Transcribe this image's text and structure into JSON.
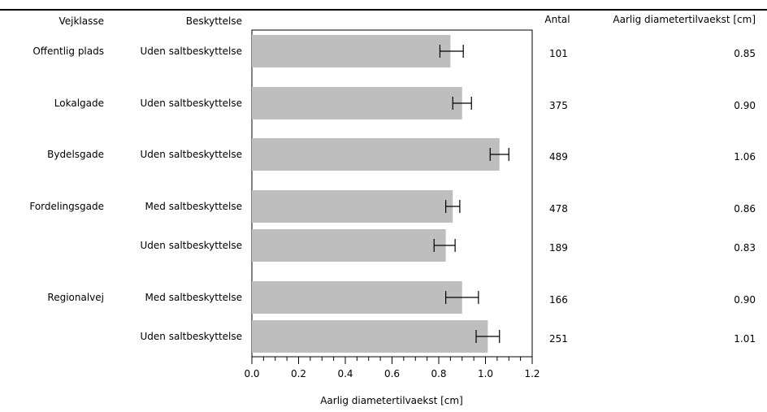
{
  "chart_data": {
    "type": "bar",
    "orientation": "horizontal",
    "headers": {
      "road_class": "Vejklasse",
      "protection": "Beskyttelse",
      "count": "Antal",
      "value": "Aarlig diametertilvaekst [cm]"
    },
    "rows": [
      {
        "road_class": "Offentlig plads",
        "protection": "Uden saltbeskyttelse",
        "count": "101",
        "value_label": "0.85",
        "value": 0.85,
        "err_low": 0.805,
        "err_high": 0.905
      },
      {
        "road_class": "Lokalgade",
        "protection": "Uden saltbeskyttelse",
        "count": "375",
        "value_label": "0.90",
        "value": 0.9,
        "err_low": 0.86,
        "err_high": 0.94
      },
      {
        "road_class": "Bydelsgade",
        "protection": "Uden saltbeskyttelse",
        "count": "489",
        "value_label": "1.06",
        "value": 1.06,
        "err_low": 1.02,
        "err_high": 1.1
      },
      {
        "road_class": "Fordelingsgade",
        "protection": "Med saltbeskyttelse",
        "count": "478",
        "value_label": "0.86",
        "value": 0.86,
        "err_low": 0.83,
        "err_high": 0.89
      },
      {
        "road_class": "",
        "protection": "Uden saltbeskyttelse",
        "count": "189",
        "value_label": "0.83",
        "value": 0.83,
        "err_low": 0.78,
        "err_high": 0.87
      },
      {
        "road_class": "Regionalvej",
        "protection": "Med saltbeskyttelse",
        "count": "166",
        "value_label": "0.90",
        "value": 0.9,
        "err_low": 0.83,
        "err_high": 0.97
      },
      {
        "road_class": "",
        "protection": "Uden saltbeskyttelse",
        "count": "251",
        "value_label": "1.01",
        "value": 1.01,
        "err_low": 0.96,
        "err_high": 1.06
      }
    ],
    "xlabel": "Aarlig diametertilvaekst [cm]",
    "xlim": [
      0,
      1.2
    ],
    "xticks": [
      "0.0",
      "0.2",
      "0.4",
      "0.6",
      "0.8",
      "1.0",
      "1.2"
    ],
    "minor_tick_step": 0.05,
    "grid": false,
    "colors": {
      "bar": "#bebebe",
      "line": "#000000"
    }
  }
}
